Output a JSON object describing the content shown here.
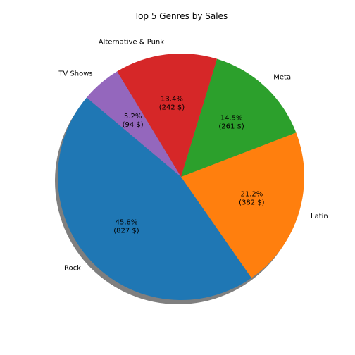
{
  "chart_data": {
    "type": "pie",
    "title": "Top 5 Genres by Sales",
    "start_angle_deg": 140,
    "shadow": true,
    "slices": [
      {
        "label": "Rock",
        "value": 827,
        "percent_text": "45.8%",
        "value_text": "(827 $)",
        "color": "#1f77b4"
      },
      {
        "label": "Latin",
        "value": 382,
        "percent_text": "21.2%",
        "value_text": "(382 $)",
        "color": "#ff7f0e"
      },
      {
        "label": "Metal",
        "value": 261,
        "percent_text": "14.5%",
        "value_text": "(261 $)",
        "color": "#2ca02c"
      },
      {
        "label": "Alternative & Punk",
        "value": 242,
        "percent_text": "13.4%",
        "value_text": "(242 $)",
        "color": "#d62728"
      },
      {
        "label": "TV Shows",
        "value": 94,
        "percent_text": "5.2%",
        "value_text": "(94 $)",
        "color": "#9467bd"
      }
    ]
  }
}
